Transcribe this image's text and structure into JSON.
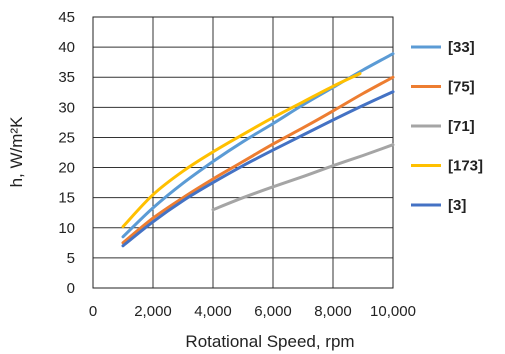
{
  "chart_data": {
    "type": "line",
    "title": "",
    "xlabel": "Rotational Speed, rpm",
    "ylabel": "h, W/m²K",
    "xlim": [
      0,
      10000
    ],
    "ylim": [
      0,
      45
    ],
    "x_ticks": [
      0,
      2000,
      4000,
      6000,
      8000,
      10000
    ],
    "x_tick_labels": [
      "0",
      "2,000",
      "4,000",
      "6,000",
      "8,000",
      "10,000"
    ],
    "y_ticks": [
      0,
      5,
      10,
      15,
      20,
      25,
      30,
      35,
      40,
      45
    ],
    "y_tick_labels": [
      "0",
      "5",
      "10",
      "15",
      "20",
      "25",
      "30",
      "35",
      "40",
      "45"
    ],
    "grid": true,
    "legend_position": "right",
    "series": [
      {
        "name": "[33]",
        "color": "#5b9bd5",
        "x": [
          1000,
          2000,
          3000,
          4000,
          5000,
          6000,
          7000,
          8000,
          9000,
          10000
        ],
        "y": [
          8.5,
          13.3,
          17.4,
          21.0,
          24.3,
          27.3,
          30.4,
          33.3,
          36.2,
          38.9
        ]
      },
      {
        "name": "[75]",
        "color": "#ed7d31",
        "x": [
          1000,
          2000,
          3000,
          4000,
          5000,
          6000,
          7000,
          8000,
          9000,
          10000
        ],
        "y": [
          7.5,
          11.6,
          15.0,
          18.1,
          21.0,
          23.9,
          26.6,
          29.4,
          32.3,
          35.0
        ]
      },
      {
        "name": "[71]",
        "color": "#a5a5a5",
        "x": [
          4000,
          5000,
          6000,
          7000,
          8000,
          9000,
          10000
        ],
        "y": [
          13.0,
          15.0,
          16.8,
          18.5,
          20.3,
          22.0,
          23.8
        ]
      },
      {
        "name": "[173]",
        "color": "#ffc000",
        "x": [
          1000,
          2000,
          3000,
          4000,
          5000,
          6000,
          7000,
          8000,
          8900
        ],
        "y": [
          10.2,
          15.5,
          19.4,
          22.6,
          25.5,
          28.3,
          30.9,
          33.5,
          35.6
        ]
      },
      {
        "name": "[3]",
        "color": "#4472c4",
        "x": [
          1000,
          2000,
          3000,
          4000,
          5000,
          6000,
          7000,
          8000,
          9000,
          10000
        ],
        "y": [
          7.0,
          11.0,
          14.5,
          17.5,
          20.3,
          22.9,
          25.4,
          27.9,
          30.3,
          32.6
        ]
      }
    ]
  }
}
